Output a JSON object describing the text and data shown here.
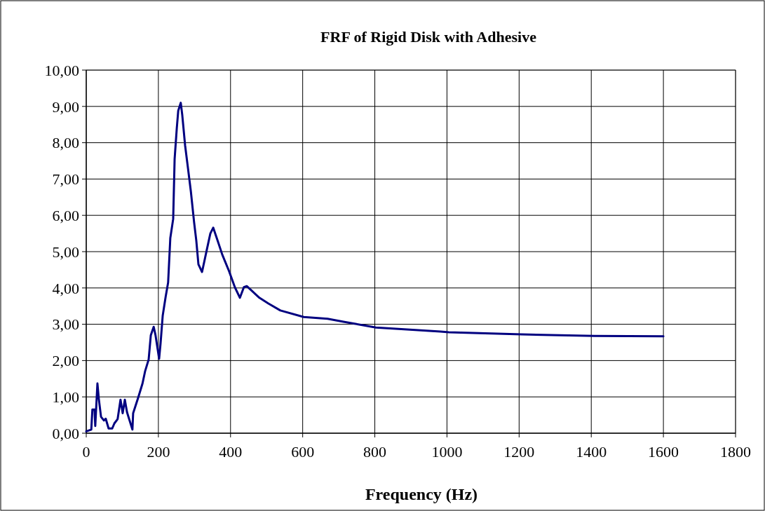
{
  "chart_data": {
    "type": "line",
    "title": "FRF of Rigid Disk with Adhesive",
    "xlabel": "Frequency (Hz)",
    "x": [
      0,
      14,
      17,
      23,
      25,
      31,
      35,
      41,
      49,
      54,
      62,
      72,
      78,
      87,
      95,
      101,
      107,
      113,
      128,
      130,
      144,
      156,
      163,
      173,
      179,
      187,
      192,
      202,
      206,
      212,
      220,
      227,
      233,
      241,
      245,
      251,
      255,
      262,
      266,
      274,
      282,
      290,
      299,
      305,
      311,
      321,
      334,
      344,
      352,
      364,
      377,
      396,
      412,
      426,
      437,
      445,
      480,
      505,
      538,
      603,
      669,
      713,
      803,
      850,
      982,
      1005,
      1207,
      1409,
      1600
    ],
    "series": [
      {
        "color": "#000080",
        "values": [
          0.05,
          0.1,
          0.65,
          0.65,
          0.2,
          1.37,
          0.93,
          0.45,
          0.35,
          0.4,
          0.13,
          0.13,
          0.27,
          0.39,
          0.92,
          0.55,
          0.92,
          0.58,
          0.1,
          0.55,
          0.98,
          1.37,
          1.7,
          2.03,
          2.7,
          2.93,
          2.7,
          2.05,
          2.47,
          3.24,
          3.75,
          4.15,
          5.37,
          5.9,
          7.55,
          8.4,
          8.88,
          9.1,
          8.78,
          7.93,
          7.3,
          6.66,
          5.81,
          5.31,
          4.65,
          4.44,
          5.04,
          5.5,
          5.66,
          5.31,
          4.92,
          4.46,
          4.02,
          3.73,
          4.02,
          4.05,
          3.73,
          3.57,
          3.38,
          3.2,
          3.15,
          3.07,
          2.91,
          2.88,
          2.8,
          2.78,
          2.72,
          2.68,
          2.67
        ]
      }
    ],
    "xlim": [
      0,
      1800
    ],
    "xticks": [
      0,
      200,
      400,
      600,
      800,
      1000,
      1200,
      1400,
      1600,
      1800
    ],
    "ylim": [
      0,
      10
    ],
    "yticks": [
      {
        "value": 0,
        "label": "0,00"
      },
      {
        "value": 1,
        "label": "1,00"
      },
      {
        "value": 2,
        "label": "2,00"
      },
      {
        "value": 3,
        "label": "3,00"
      },
      {
        "value": 4,
        "label": "4,00"
      },
      {
        "value": 5,
        "label": "5,00"
      },
      {
        "value": 6,
        "label": "6,00"
      },
      {
        "value": 7,
        "label": "7,00"
      },
      {
        "value": 8,
        "label": "8,00"
      },
      {
        "value": 9,
        "label": "9,00"
      },
      {
        "value": 10,
        "label": "10,00"
      }
    ],
    "grid": true,
    "marker": "none",
    "line_style": "solid"
  }
}
